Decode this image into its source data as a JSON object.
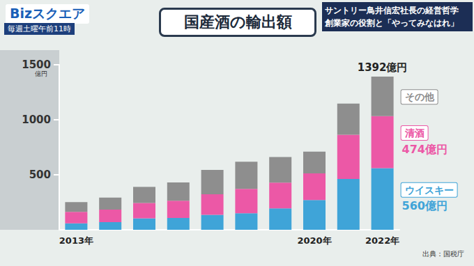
{
  "chart_data": {
    "type": "bar",
    "title": "国産酒の輸出額",
    "stacked": true,
    "grid": false,
    "categories": [
      "2013年",
      null,
      null,
      null,
      null,
      null,
      null,
      "2020年",
      null,
      "2022年"
    ],
    "ylim": [
      0,
      1500
    ],
    "yticks": [
      500,
      1000,
      1500
    ],
    "ylabel": "億円",
    "series": [
      {
        "name": "ウイスキー",
        "color": "#3fa4d8",
        "values": [
          58,
          69,
          104,
          108,
          136,
          150,
          195,
          271,
          462,
          560
        ],
        "value_labels": [
          null,
          null,
          null,
          null,
          null,
          null,
          null,
          null,
          null,
          "560億円"
        ]
      },
      {
        "name": "清酒",
        "color": "#ec58a6",
        "values": [
          105,
          115,
          140,
          156,
          187,
          222,
          234,
          241,
          402,
          474
        ],
        "value_labels": [
          null,
          null,
          null,
          null,
          null,
          null,
          null,
          null,
          null,
          "474億円"
        ]
      },
      {
        "name": "その他",
        "color": "#8e8e8e",
        "values": [
          88,
          109,
          146,
          166,
          222,
          246,
          232,
          198,
          283,
          358
        ]
      }
    ],
    "annotations": [
      {
        "text": "1392億円",
        "category_index": 9,
        "value": 1392
      }
    ],
    "source": "出典：国税庁"
  },
  "screen": {
    "logo": "Bizスクエア",
    "schedule": "毎週土曜午前11時",
    "topic": [
      "サントリー鳥井信宏社長の経営哲学",
      "創業家の役割と「やってみなはれ」"
    ]
  }
}
